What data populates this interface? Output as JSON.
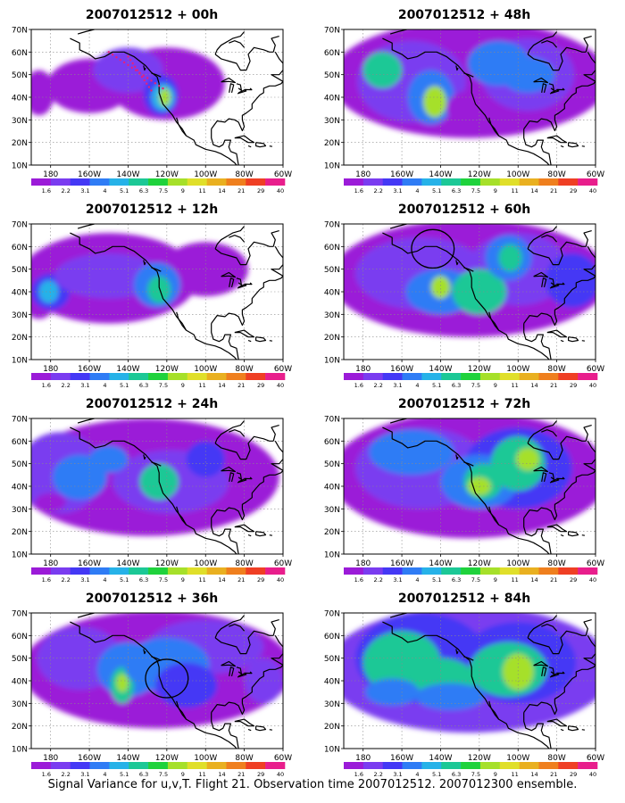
{
  "figure": {
    "caption": "Signal Variance for u,v,T. Flight 21. Observation time 2007012512. 2007012300 ensemble."
  },
  "axes": {
    "lat_labels": [
      "70N",
      "60N",
      "50N",
      "40N",
      "30N",
      "20N",
      "10N"
    ],
    "lon_labels": [
      "180",
      "160W",
      "140W",
      "120W",
      "100W",
      "80W",
      "60W"
    ]
  },
  "colorbar": {
    "labels": [
      "1.6",
      "2.2",
      "3.1",
      "4",
      "5.1",
      "6.3",
      "7.5",
      "9",
      "11",
      "14",
      "21",
      "29",
      "40"
    ],
    "colors": [
      "#9b1bd8",
      "#7a3cf0",
      "#4438f5",
      "#2f7cf5",
      "#26b2e8",
      "#1cc896",
      "#1fd23c",
      "#a6e02a",
      "#e0df2a",
      "#e9b020",
      "#ef7f1e",
      "#ef3f24",
      "#e81e8c"
    ]
  },
  "panels": [
    {
      "title": "2007012512 + 00h",
      "flight_track": true,
      "circle": null
    },
    {
      "title": "2007012512 + 48h",
      "flight_track": false,
      "circle": null
    },
    {
      "title": "2007012512 + 12h",
      "flight_track": false,
      "circle": null
    },
    {
      "title": "2007012512 + 60h",
      "flight_track": false,
      "circle": {
        "lon": -144,
        "lat": 59
      }
    },
    {
      "title": "2007012512 + 24h",
      "flight_track": false,
      "circle": null
    },
    {
      "title": "2007012512 + 72h",
      "flight_track": false,
      "circle": null
    },
    {
      "title": "2007012512 + 36h",
      "flight_track": false,
      "circle": {
        "lon": -120,
        "lat": 41
      }
    },
    {
      "title": "2007012512 + 84h",
      "flight_track": false,
      "circle": null
    }
  ]
}
